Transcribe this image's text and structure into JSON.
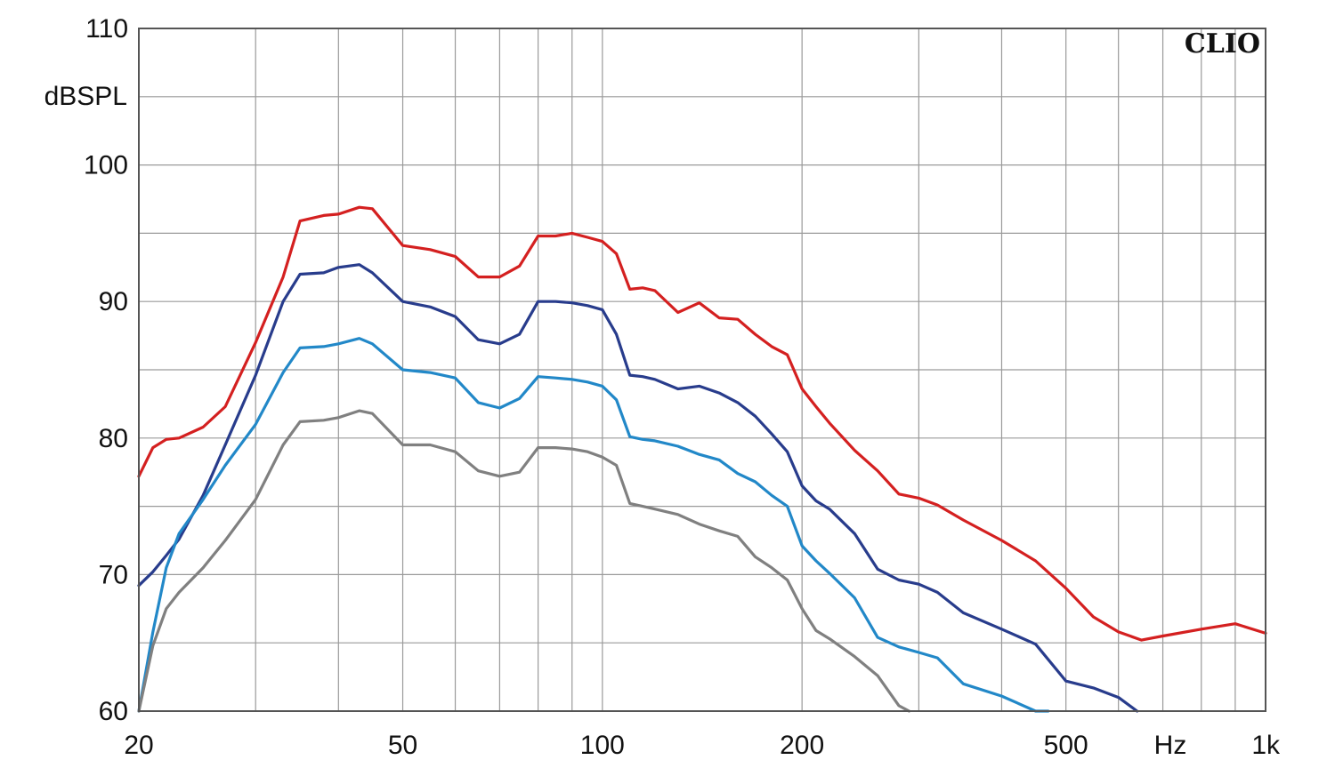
{
  "chart_data": {
    "type": "line",
    "title": "",
    "brand": "CLIO",
    "xlabel": "Hz",
    "ylabel": "dBSPL",
    "x_scale": "log",
    "xlim": [
      20,
      1000
    ],
    "ylim": [
      60,
      110
    ],
    "grid": true,
    "x_tick_labels": [
      {
        "value": 20,
        "label": "20"
      },
      {
        "value": 50,
        "label": "50"
      },
      {
        "value": 100,
        "label": "100"
      },
      {
        "value": 200,
        "label": "200"
      },
      {
        "value": 500,
        "label": "500"
      },
      {
        "value": 1000,
        "label": "1k"
      }
    ],
    "y_tick_labels": [
      {
        "value": 60,
        "label": "60"
      },
      {
        "value": 70,
        "label": "70"
      },
      {
        "value": 80,
        "label": "80"
      },
      {
        "value": 90,
        "label": "90"
      },
      {
        "value": 100,
        "label": "100"
      },
      {
        "value": 110,
        "label": "110"
      }
    ],
    "series": [
      {
        "color": "#d42020",
        "x": [
          20,
          21,
          22,
          23,
          25,
          27,
          30,
          33,
          35,
          38,
          40,
          43,
          45,
          50,
          55,
          60,
          65,
          70,
          75,
          80,
          85,
          90,
          95,
          100,
          105,
          110,
          115,
          120,
          130,
          140,
          150,
          160,
          170,
          180,
          190,
          200,
          210,
          220,
          240,
          260,
          280,
          300,
          320,
          350,
          400,
          450,
          500,
          550,
          600,
          650,
          700,
          800,
          900,
          1000
        ],
        "y": [
          77.2,
          79.3,
          79.9,
          80.0,
          80.8,
          82.3,
          87.0,
          91.8,
          95.9,
          96.3,
          96.4,
          96.9,
          96.8,
          94.1,
          93.8,
          93.3,
          91.8,
          91.8,
          92.6,
          94.8,
          94.8,
          95.0,
          94.7,
          94.4,
          93.5,
          90.9,
          91.0,
          90.8,
          89.2,
          89.9,
          88.8,
          88.7,
          87.6,
          86.7,
          86.1,
          83.6,
          82.3,
          81.1,
          79.1,
          77.6,
          75.9,
          75.6,
          75.1,
          74.0,
          72.5,
          71.0,
          69.0,
          66.9,
          65.8,
          65.2,
          65.5,
          66.0,
          66.4,
          65.7
        ]
      },
      {
        "color": "#283c8c",
        "x": [
          20,
          21,
          22,
          23,
          25,
          27,
          30,
          33,
          35,
          38,
          40,
          43,
          45,
          50,
          55,
          60,
          65,
          70,
          75,
          80,
          85,
          90,
          95,
          100,
          105,
          110,
          115,
          120,
          130,
          140,
          150,
          160,
          170,
          180,
          190,
          200,
          210,
          220,
          240,
          260,
          280,
          300,
          320,
          350,
          400,
          450,
          500,
          550,
          600,
          640
        ],
        "y": [
          69.2,
          70.2,
          71.4,
          72.6,
          75.8,
          79.5,
          84.6,
          90.0,
          92.0,
          92.1,
          92.5,
          92.7,
          92.1,
          90.0,
          89.6,
          88.9,
          87.2,
          86.9,
          87.6,
          90.0,
          90.0,
          89.9,
          89.7,
          89.4,
          87.6,
          84.6,
          84.5,
          84.3,
          83.6,
          83.8,
          83.3,
          82.6,
          81.6,
          80.3,
          79.0,
          76.5,
          75.4,
          74.8,
          73.0,
          70.4,
          69.6,
          69.3,
          68.7,
          67.2,
          66.0,
          64.9,
          62.2,
          61.7,
          61.0,
          60.0
        ]
      },
      {
        "color": "#2288c8",
        "x": [
          20,
          21,
          22,
          23,
          25,
          27,
          30,
          33,
          35,
          38,
          40,
          43,
          45,
          50,
          55,
          60,
          65,
          70,
          75,
          80,
          85,
          90,
          95,
          100,
          105,
          110,
          115,
          120,
          130,
          140,
          150,
          160,
          170,
          180,
          190,
          200,
          210,
          220,
          240,
          260,
          280,
          300,
          320,
          350,
          400,
          450,
          470
        ],
        "y": [
          60.0,
          65.8,
          70.5,
          73.0,
          75.5,
          78.0,
          81.0,
          84.8,
          86.6,
          86.7,
          86.9,
          87.3,
          86.9,
          85.0,
          84.8,
          84.4,
          82.6,
          82.2,
          82.9,
          84.5,
          84.4,
          84.3,
          84.1,
          83.8,
          82.8,
          80.1,
          79.9,
          79.8,
          79.4,
          78.8,
          78.4,
          77.4,
          76.8,
          75.8,
          75.0,
          72.1,
          71.0,
          70.1,
          68.3,
          65.4,
          64.7,
          64.3,
          63.9,
          62.0,
          61.1,
          60.0,
          60.0
        ]
      },
      {
        "color": "#808080",
        "x": [
          20,
          21,
          22,
          23,
          25,
          27,
          30,
          33,
          35,
          38,
          40,
          43,
          45,
          50,
          55,
          60,
          65,
          70,
          75,
          80,
          85,
          90,
          95,
          100,
          105,
          110,
          115,
          120,
          130,
          140,
          150,
          160,
          170,
          180,
          190,
          200,
          210,
          220,
          240,
          260,
          280,
          290
        ],
        "y": [
          60.0,
          64.8,
          67.5,
          68.7,
          70.5,
          72.5,
          75.5,
          79.5,
          81.2,
          81.3,
          81.5,
          82.0,
          81.8,
          79.5,
          79.5,
          79.0,
          77.6,
          77.2,
          77.5,
          79.3,
          79.3,
          79.2,
          79.0,
          78.6,
          78.0,
          75.2,
          75.0,
          74.8,
          74.4,
          73.7,
          73.2,
          72.8,
          71.3,
          70.5,
          69.6,
          67.5,
          65.9,
          65.3,
          64.0,
          62.6,
          60.4,
          60.0
        ]
      }
    ]
  }
}
